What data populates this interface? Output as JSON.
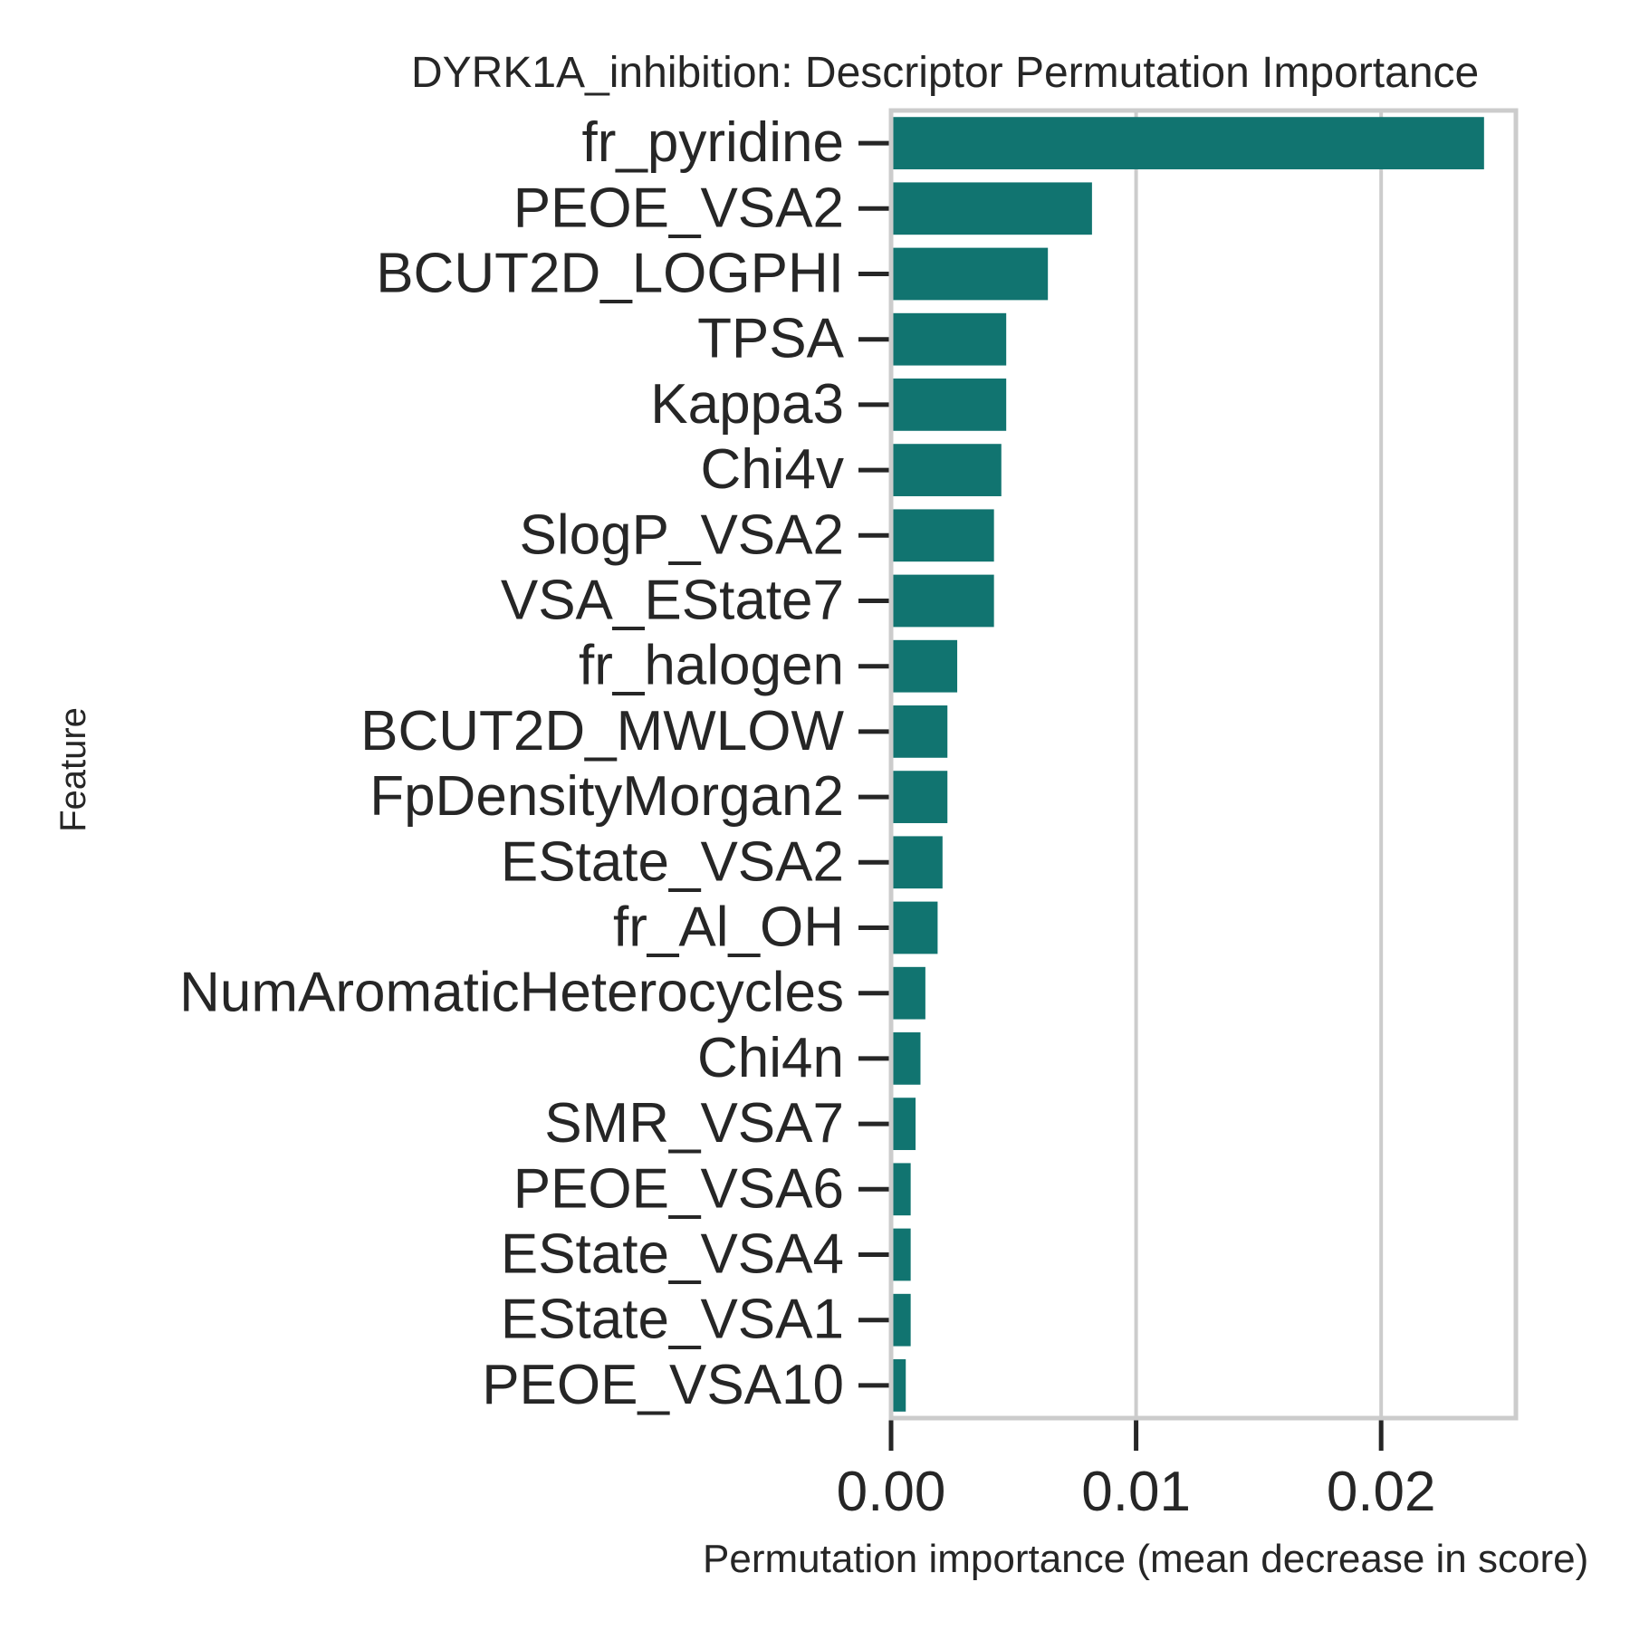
{
  "chart_data": {
    "type": "bar",
    "orientation": "horizontal",
    "title": "DYRK1A_inhibition: Descriptor Permutation Importance",
    "xlabel": "Permutation importance (mean decrease in score)",
    "ylabel": "Feature",
    "categories": [
      "fr_pyridine",
      "PEOE_VSA2",
      "BCUT2D_LOGPHI",
      "TPSA",
      "Kappa3",
      "Chi4v",
      "SlogP_VSA2",
      "VSA_EState7",
      "fr_halogen",
      "BCUT2D_MWLOW",
      "FpDensityMorgan2",
      "EState_VSA2",
      "fr_Al_OH",
      "NumAromaticHeterocycles",
      "Chi4n",
      "SMR_VSA7",
      "PEOE_VSA6",
      "EState_VSA4",
      "EState_VSA1",
      "PEOE_VSA10"
    ],
    "values": [
      0.0242,
      0.0082,
      0.0064,
      0.0047,
      0.0047,
      0.0045,
      0.0042,
      0.0042,
      0.0027,
      0.0023,
      0.0023,
      0.0021,
      0.0019,
      0.0014,
      0.0012,
      0.001,
      0.0008,
      0.0008,
      0.0008,
      0.0006
    ],
    "xlim": [
      0,
      0.0255
    ],
    "xticks": [
      0.0,
      0.01,
      0.02
    ],
    "xtick_labels": [
      "0.00",
      "0.01",
      "0.02"
    ],
    "grid": true,
    "bar_color": "#117470",
    "grid_color": "#cccccc",
    "frame_color": "#cccccc",
    "text_color": "#262626"
  }
}
